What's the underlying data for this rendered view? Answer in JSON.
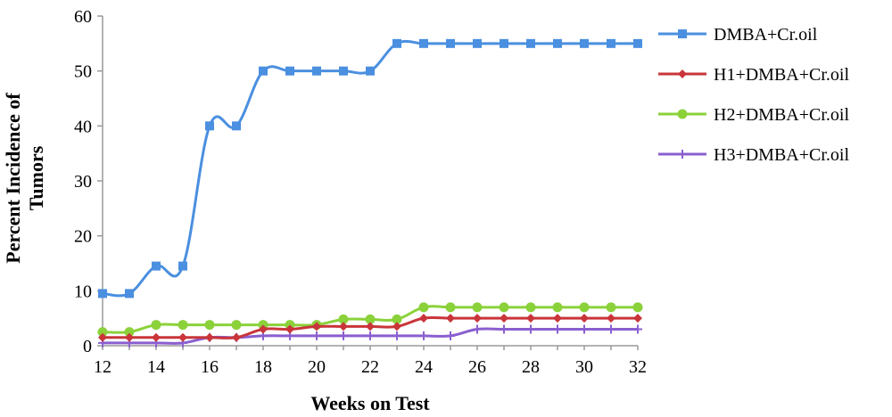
{
  "chart_data": {
    "type": "line",
    "title": "",
    "xlabel": "Weeks on Test",
    "ylabel_lines": [
      "Percent Incidence of",
      "Tumors"
    ],
    "x": [
      12,
      13,
      14,
      15,
      16,
      17,
      18,
      19,
      20,
      21,
      22,
      23,
      24,
      25,
      26,
      27,
      28,
      29,
      30,
      31,
      32
    ],
    "xlim": [
      12,
      32
    ],
    "ylim": [
      0,
      60
    ],
    "x_ticks": [
      "12",
      "14",
      "16",
      "18",
      "20",
      "22",
      "24",
      "26",
      "28",
      "30",
      "32"
    ],
    "y_ticks": [
      "0",
      "10",
      "20",
      "30",
      "40",
      "50",
      "60"
    ],
    "grid": false,
    "legend_position": "right",
    "series": [
      {
        "name": "DMBA+Cr.oil",
        "color": "#4a8fe0",
        "marker": "square",
        "values": [
          9.5,
          9.5,
          14.5,
          14.5,
          40,
          40,
          50,
          50,
          50,
          50,
          50,
          55,
          55,
          55,
          55,
          55,
          55,
          55,
          55,
          55,
          55
        ]
      },
      {
        "name": "H1+DMBA+Cr.oil",
        "color": "#c9353a",
        "marker": "diamond",
        "values": [
          1.5,
          1.5,
          1.5,
          1.5,
          1.5,
          1.5,
          3,
          3,
          3.5,
          3.5,
          3.5,
          3.5,
          5,
          5,
          5,
          5,
          5,
          5,
          5,
          5,
          5
        ]
      },
      {
        "name": "H2+DMBA+Cr.oil",
        "color": "#8bd13a",
        "marker": "circle",
        "values": [
          2.5,
          2.5,
          3.8,
          3.8,
          3.8,
          3.8,
          3.8,
          3.8,
          3.8,
          4.8,
          4.8,
          4.8,
          7,
          7,
          7,
          7,
          7,
          7,
          7,
          7,
          7
        ]
      },
      {
        "name": "H3+DMBA+Cr.oil",
        "color": "#8a5fd0",
        "marker": "plus",
        "values": [
          0.5,
          0.5,
          0.5,
          0.5,
          1.5,
          1.5,
          1.8,
          1.8,
          1.8,
          1.8,
          1.8,
          1.8,
          1.8,
          1.8,
          3,
          3,
          3,
          3,
          3,
          3,
          3
        ]
      }
    ]
  }
}
